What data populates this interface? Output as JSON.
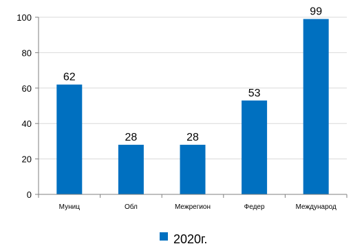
{
  "chart_data": {
    "type": "bar",
    "categories": [
      "Муниц",
      "Обл",
      "Межрегион",
      "Федер",
      "Международ"
    ],
    "series": [
      {
        "name": "2020г.",
        "values": [
          62,
          28,
          28,
          53,
          99
        ],
        "color": "#0070C0"
      }
    ],
    "data_labels": [
      "62",
      "28",
      "28",
      "53",
      "99"
    ],
    "yticks": [
      "0",
      "20",
      "40",
      "60",
      "80",
      "100"
    ],
    "ylim": [
      0,
      100
    ],
    "grid": true,
    "legend_position": "bottom"
  }
}
